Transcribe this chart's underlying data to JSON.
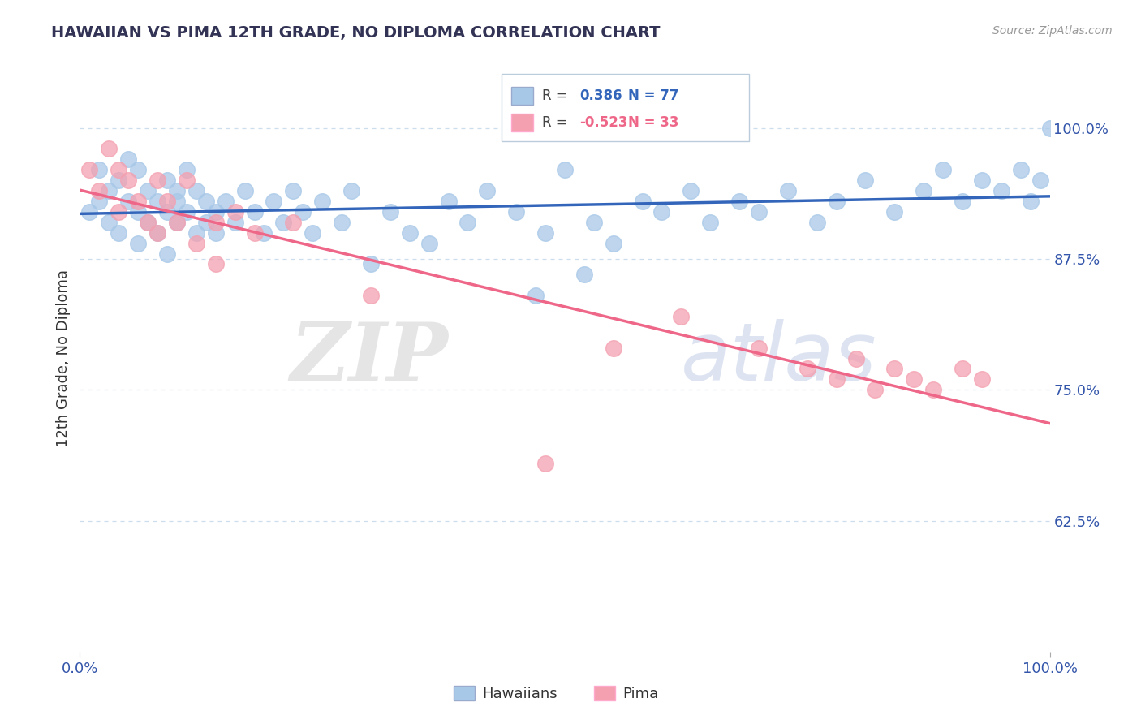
{
  "title": "HAWAIIAN VS PIMA 12TH GRADE, NO DIPLOMA CORRELATION CHART",
  "source_text": "Source: ZipAtlas.com",
  "ylabel": "12th Grade, No Diploma",
  "legend_hawaiians": "Hawaiians",
  "legend_pima": "Pima",
  "R_hawaiian": 0.386,
  "N_hawaiian": 77,
  "R_pima": -0.523,
  "N_pima": 33,
  "color_hawaiian": "#A8C8E8",
  "color_pima": "#F4A0B0",
  "line_color_hawaiian": "#3366BB",
  "line_color_pima": "#EE6688",
  "watermark_zip": "ZIP",
  "watermark_atlas": "atlas",
  "watermark_color_zip": "#CCCCCC",
  "watermark_color_atlas": "#AABBDD",
  "background_color": "#FFFFFF",
  "title_color": "#333355",
  "axis_color": "#3355AA",
  "text_color": "#333333",
  "grid_color": "#CCDDEE",
  "xlim": [
    0.0,
    1.0
  ],
  "ylim": [
    0.5,
    1.06
  ],
  "yticks": [
    0.625,
    0.75,
    0.875,
    1.0
  ],
  "ytick_labels": [
    "62.5%",
    "75.0%",
    "87.5%",
    "100.0%"
  ],
  "xticks": [
    0.0,
    1.0
  ],
  "xtick_labels": [
    "0.0%",
    "100.0%"
  ],
  "hawaiian_x": [
    0.01,
    0.02,
    0.02,
    0.03,
    0.03,
    0.04,
    0.04,
    0.05,
    0.05,
    0.06,
    0.06,
    0.06,
    0.07,
    0.07,
    0.08,
    0.08,
    0.09,
    0.09,
    0.09,
    0.1,
    0.1,
    0.1,
    0.11,
    0.11,
    0.12,
    0.12,
    0.13,
    0.13,
    0.14,
    0.14,
    0.15,
    0.16,
    0.17,
    0.18,
    0.19,
    0.2,
    0.21,
    0.22,
    0.23,
    0.24,
    0.25,
    0.27,
    0.28,
    0.3,
    0.32,
    0.34,
    0.36,
    0.38,
    0.4,
    0.42,
    0.45,
    0.48,
    0.5,
    0.53,
    0.55,
    0.58,
    0.6,
    0.63,
    0.65,
    0.68,
    0.7,
    0.73,
    0.76,
    0.78,
    0.81,
    0.84,
    0.87,
    0.89,
    0.91,
    0.93,
    0.95,
    0.97,
    0.98,
    0.99,
    1.0,
    0.47,
    0.52
  ],
  "hawaiian_y": [
    0.92,
    0.96,
    0.93,
    0.91,
    0.94,
    0.95,
    0.9,
    0.93,
    0.97,
    0.92,
    0.96,
    0.89,
    0.94,
    0.91,
    0.93,
    0.9,
    0.95,
    0.92,
    0.88,
    0.94,
    0.91,
    0.93,
    0.92,
    0.96,
    0.9,
    0.94,
    0.91,
    0.93,
    0.92,
    0.9,
    0.93,
    0.91,
    0.94,
    0.92,
    0.9,
    0.93,
    0.91,
    0.94,
    0.92,
    0.9,
    0.93,
    0.91,
    0.94,
    0.87,
    0.92,
    0.9,
    0.89,
    0.93,
    0.91,
    0.94,
    0.92,
    0.9,
    0.96,
    0.91,
    0.89,
    0.93,
    0.92,
    0.94,
    0.91,
    0.93,
    0.92,
    0.94,
    0.91,
    0.93,
    0.95,
    0.92,
    0.94,
    0.96,
    0.93,
    0.95,
    0.94,
    0.96,
    0.93,
    0.95,
    1.0,
    0.84,
    0.86
  ],
  "pima_x": [
    0.01,
    0.02,
    0.03,
    0.04,
    0.04,
    0.05,
    0.06,
    0.07,
    0.08,
    0.08,
    0.09,
    0.1,
    0.11,
    0.12,
    0.14,
    0.16,
    0.18,
    0.22,
    0.7,
    0.75,
    0.78,
    0.8,
    0.82,
    0.84,
    0.86,
    0.88,
    0.91,
    0.93,
    0.48,
    0.62,
    0.55,
    0.14,
    0.3
  ],
  "pima_y": [
    0.96,
    0.94,
    0.98,
    0.96,
    0.92,
    0.95,
    0.93,
    0.91,
    0.95,
    0.9,
    0.93,
    0.91,
    0.95,
    0.89,
    0.91,
    0.92,
    0.9,
    0.91,
    0.79,
    0.77,
    0.76,
    0.78,
    0.75,
    0.77,
    0.76,
    0.75,
    0.77,
    0.76,
    0.68,
    0.82,
    0.79,
    0.87,
    0.84
  ]
}
